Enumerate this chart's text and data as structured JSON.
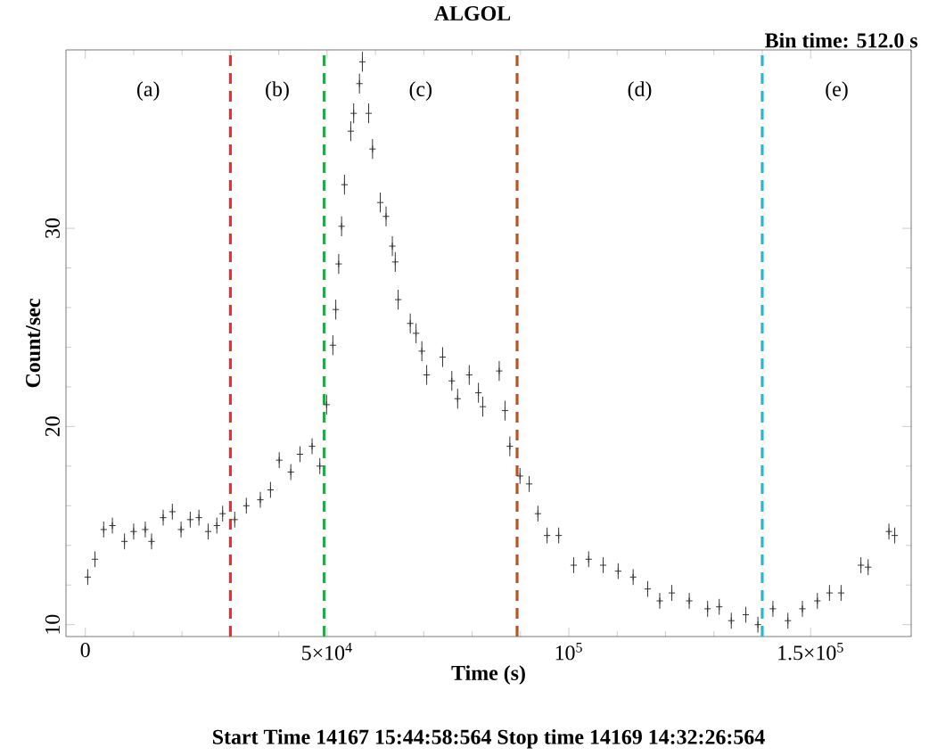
{
  "chart_data": {
    "type": "scatter",
    "title": "ALGOL",
    "xlabel": "Time (s)",
    "ylabel": "Count/sec",
    "annotations": [
      "(a)",
      "(b)",
      "(c)",
      "(d)",
      "(e)",
      "Bin time:   512.0 s",
      "Start Time 14167 15:44:58:564   Stop time 14169  14:32:26:564"
    ],
    "x": [
      500,
      2000,
      3800,
      5600,
      8100,
      10000,
      12400,
      13700,
      16100,
      18000,
      19800,
      21700,
      23500,
      25400,
      27200,
      28400,
      30900,
      33300,
      36200,
      38300,
      40100,
      42500,
      44400,
      46900,
      48500,
      49900,
      51200,
      51800,
      52400,
      53000,
      53600,
      54900,
      55500,
      56700,
      57300,
      58600,
      59400,
      61000,
      62200,
      63500,
      64100,
      64700,
      67200,
      68400,
      69600,
      70600,
      73900,
      75800,
      77000,
      79400,
      81300,
      82200,
      85600,
      86800,
      87800,
      89900,
      91800,
      93600,
      95500,
      97900,
      101000,
      104100,
      107100,
      110200,
      113300,
      116300,
      118800,
      121300,
      124900,
      128700,
      131100,
      133600,
      136600,
      139100,
      142200,
      145300,
      148300,
      151400,
      153900,
      156300,
      160400,
      161900,
      166200,
      167400
    ],
    "series": [
      {
        "color": "#333333",
        "values": [
          12.4,
          13.3,
          14.8,
          15.0,
          14.2,
          14.7,
          14.8,
          14.2,
          15.4,
          15.7,
          14.8,
          15.3,
          15.4,
          14.7,
          15.0,
          15.6,
          15.3,
          16.0,
          16.3,
          16.8,
          18.3,
          17.7,
          18.6,
          19.0,
          18.0,
          21.1,
          24.1,
          25.9,
          28.2,
          30.1,
          32.2,
          34.9,
          35.8,
          37.3,
          38.4,
          35.8,
          34.0,
          31.3,
          30.6,
          29.1,
          28.3,
          26.4,
          25.2,
          24.7,
          23.8,
          22.6,
          23.5,
          22.3,
          21.4,
          22.6,
          21.7,
          21.0,
          22.8,
          20.8,
          19.0,
          17.5,
          17.1,
          15.6,
          14.5,
          14.5,
          13.0,
          13.3,
          13.0,
          12.7,
          12.4,
          11.8,
          11.2,
          11.6,
          11.2,
          10.8,
          10.9,
          10.2,
          10.5,
          10.0,
          10.8,
          10.2,
          10.8,
          11.2,
          11.6,
          11.6,
          13.0,
          12.9,
          14.7,
          14.5
        ],
        "errors": [
          0.4,
          0.4,
          0.4,
          0.4,
          0.4,
          0.4,
          0.4,
          0.4,
          0.4,
          0.4,
          0.4,
          0.4,
          0.4,
          0.4,
          0.4,
          0.4,
          0.4,
          0.4,
          0.4,
          0.4,
          0.4,
          0.4,
          0.4,
          0.4,
          0.4,
          0.5,
          0.5,
          0.5,
          0.5,
          0.5,
          0.5,
          0.5,
          0.5,
          0.5,
          0.5,
          0.5,
          0.5,
          0.5,
          0.5,
          0.5,
          0.5,
          0.5,
          0.5,
          0.5,
          0.5,
          0.5,
          0.5,
          0.5,
          0.5,
          0.5,
          0.5,
          0.5,
          0.5,
          0.5,
          0.5,
          0.4,
          0.4,
          0.4,
          0.4,
          0.4,
          0.4,
          0.4,
          0.4,
          0.4,
          0.4,
          0.4,
          0.4,
          0.4,
          0.4,
          0.4,
          0.4,
          0.4,
          0.4,
          0.4,
          0.4,
          0.4,
          0.4,
          0.4,
          0.4,
          0.4,
          0.4,
          0.4,
          0.4,
          0.4
        ]
      }
    ],
    "marker": "cross",
    "xlim": [
      -4000,
      170800
    ],
    "ylim": [
      9.4,
      39.0
    ],
    "xticks": [
      0,
      {
        "value": 50000,
        "label": "5×10$^{4}$"
      },
      {
        "value": 100000,
        "label": "10$^{5}$"
      },
      {
        "value": 150000,
        "label": "1.5×10$^{5}$"
      }
    ],
    "yticks": [
      10,
      20,
      30
    ],
    "ref_lines": [
      {
        "axis": "x",
        "value": 30000,
        "color": "#e8312e",
        "line_style": "dashed"
      },
      {
        "axis": "x",
        "value": 49400,
        "color": "#2ca64a",
        "line_style": "dashed"
      },
      {
        "axis": "x",
        "value": 89300,
        "color": "#b5562a",
        "line_style": "dashed"
      },
      {
        "axis": "x",
        "value": 140000,
        "color": "#29b4e0",
        "line_style": "dashed"
      }
    ]
  }
}
